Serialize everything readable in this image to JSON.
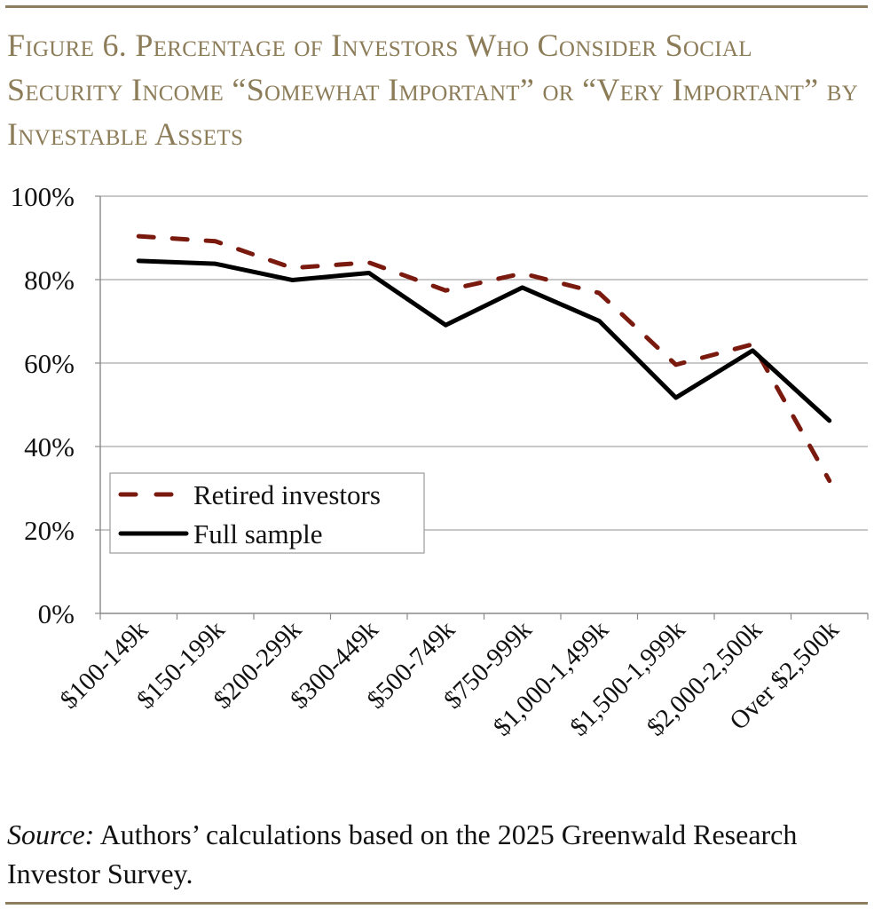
{
  "title": "Figure 6. Percentage of Investors Who Consider Social Security Income “Somewhat Important” or “Very Important” by Investable Assets",
  "source_label": "Source:",
  "source_text": " Authors’ calculations based on the 2025 Greenwald Research Investor Survey.",
  "colors": {
    "accent": "#8c7c58",
    "retired": "#7a1a0e",
    "full": "#000000"
  },
  "chart_data": {
    "type": "line",
    "categories": [
      "$100-149k",
      "$150-199k",
      "$200-299k",
      "$300-449k",
      "$500-749k",
      "$750-999k",
      "$1,000-1,499k",
      "$1,500-1,999k",
      "$2,000-2,500k",
      "Over $2,500k"
    ],
    "series": [
      {
        "name": "Retired investors",
        "style": "dashed",
        "color": "#7a1a0e",
        "values": [
          90.4,
          89.2,
          82.8,
          84.1,
          77.4,
          81.5,
          76.8,
          59.6,
          64.5,
          31.8
        ]
      },
      {
        "name": "Full sample",
        "style": "solid",
        "color": "#000000",
        "values": [
          84.5,
          83.8,
          79.9,
          81.6,
          69.1,
          78.1,
          70.1,
          51.7,
          63.0,
          46.2
        ]
      }
    ],
    "ylim": [
      0,
      100
    ],
    "yticks": [
      "0%",
      "20%",
      "40%",
      "60%",
      "80%",
      "100%"
    ],
    "grid": true,
    "legend": "left, lower-middle"
  }
}
